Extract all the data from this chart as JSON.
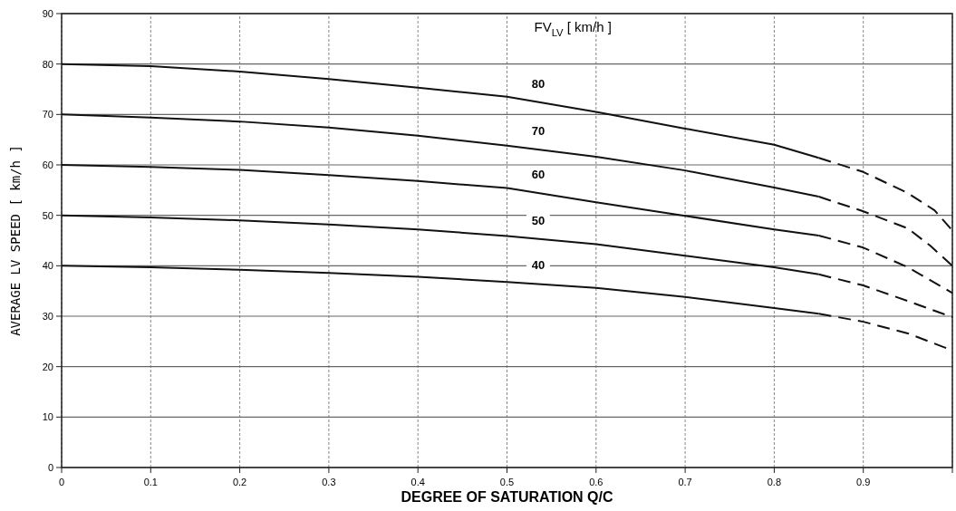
{
  "chart_data": {
    "type": "line",
    "xlabel": "DEGREE OF SATURATION  Q/C",
    "ylabel": "AVERAGE LV SPEED  [ km/h ]",
    "xlim": [
      0,
      1
    ],
    "ylim": [
      0,
      90
    ],
    "xticks": [
      0,
      0.1,
      0.2,
      0.3,
      0.4,
      0.5,
      0.6,
      0.7,
      0.8,
      0.9,
      {
        "value": 1,
        "label": null
      }
    ],
    "yticks": [
      0,
      10,
      20,
      30,
      40,
      50,
      60,
      70,
      80,
      90
    ],
    "grid": true,
    "line_style": "solid",
    "marker": "none",
    "series": [
      {
        "name": "80",
        "color": "#111111",
        "x": [
          0,
          0.1,
          0.2,
          0.3,
          0.4,
          0.5,
          0.6,
          0.7,
          0.8,
          0.85
        ],
        "values": [
          80,
          79.6,
          78.5,
          77,
          75.3,
          73.5,
          70.5,
          67.2,
          64,
          61.4
        ]
      },
      {
        "color": "#111111",
        "line_style": "dashed",
        "x": [
          0.85,
          0.9,
          0.95,
          0.98,
          1
        ],
        "values": [
          61.4,
          58.6,
          54.4,
          51,
          47
        ]
      },
      {
        "name": "70",
        "color": "#111111",
        "x": [
          0,
          0.1,
          0.2,
          0.3,
          0.4,
          0.5,
          0.6,
          0.7,
          0.8,
          0.85
        ],
        "values": [
          70,
          69.4,
          68.6,
          67.4,
          65.8,
          63.8,
          61.6,
          58.9,
          55.5,
          53.7
        ]
      },
      {
        "color": "#111111",
        "line_style": "dashed",
        "x": [
          0.85,
          0.9,
          0.95,
          0.975,
          1
        ],
        "values": [
          53.7,
          50.8,
          47.4,
          44,
          40
        ]
      },
      {
        "name": "60",
        "color": "#111111",
        "x": [
          0,
          0.1,
          0.2,
          0.3,
          0.4,
          0.5,
          0.6,
          0.7,
          0.8,
          0.85
        ],
        "values": [
          60,
          59.6,
          59,
          58,
          56.8,
          55.4,
          52.6,
          49.9,
          47.2,
          46
        ]
      },
      {
        "color": "#111111",
        "line_style": "dashed",
        "x": [
          0.85,
          0.9,
          0.95,
          1
        ],
        "values": [
          46,
          43.6,
          39.7,
          34.6
        ]
      },
      {
        "name": "50",
        "color": "#111111",
        "x": [
          0,
          0.1,
          0.2,
          0.3,
          0.4,
          0.5,
          0.6,
          0.7,
          0.8,
          0.85
        ],
        "values": [
          50,
          49.6,
          49,
          48.2,
          47.2,
          45.9,
          44.3,
          42,
          39.7,
          38.3
        ]
      },
      {
        "color": "#111111",
        "line_style": "dashed",
        "x": [
          0.85,
          0.9,
          0.95,
          1
        ],
        "values": [
          38.3,
          36.1,
          33,
          29.8
        ]
      },
      {
        "name": "40",
        "color": "#111111",
        "x": [
          0,
          0.1,
          0.2,
          0.3,
          0.4,
          0.5,
          0.6,
          0.7,
          0.8,
          0.85
        ],
        "values": [
          40,
          39.7,
          39.2,
          38.6,
          37.8,
          36.8,
          35.6,
          33.8,
          31.6,
          30.5
        ]
      },
      {
        "color": "#111111",
        "line_style": "dashed",
        "x": [
          0.85,
          0.9,
          0.95,
          1
        ],
        "values": [
          30.5,
          28.9,
          26.6,
          23.2
        ]
      }
    ],
    "legend_title": "FV$_{LV}$  [ km/h ]"
  }
}
